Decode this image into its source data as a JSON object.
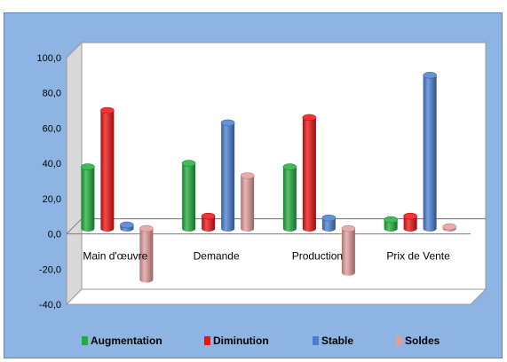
{
  "chart_data": {
    "type": "bar",
    "style": "3d-cylinder",
    "categories": [
      "Main d'œuvre",
      "Demande",
      "Production",
      "Prix de Vente"
    ],
    "series": [
      {
        "name": "Augmentation",
        "color": "#1fae3a",
        "values": [
          35,
          37,
          35,
          5
        ]
      },
      {
        "name": "Diminution",
        "color": "#ee1111",
        "values": [
          67,
          7,
          63,
          7
        ]
      },
      {
        "name": "Stable",
        "color": "#4a7ed1",
        "values": [
          2,
          60,
          6,
          87
        ]
      },
      {
        "name": "Soldes",
        "color": "#e49c9c",
        "values": [
          -29,
          30,
          -25,
          1
        ]
      }
    ],
    "ylim": [
      -40,
      100
    ],
    "yticks": [
      "100,0",
      "80,0",
      "60,0",
      "40,0",
      "20,0",
      "0,0",
      "-20,0",
      "-40,0"
    ],
    "ytick_values": [
      100,
      80,
      60,
      40,
      20,
      0,
      -20,
      -40
    ],
    "legend_position": "bottom",
    "background_color": "#8eb4e3",
    "plot_color": "#ffffff"
  }
}
